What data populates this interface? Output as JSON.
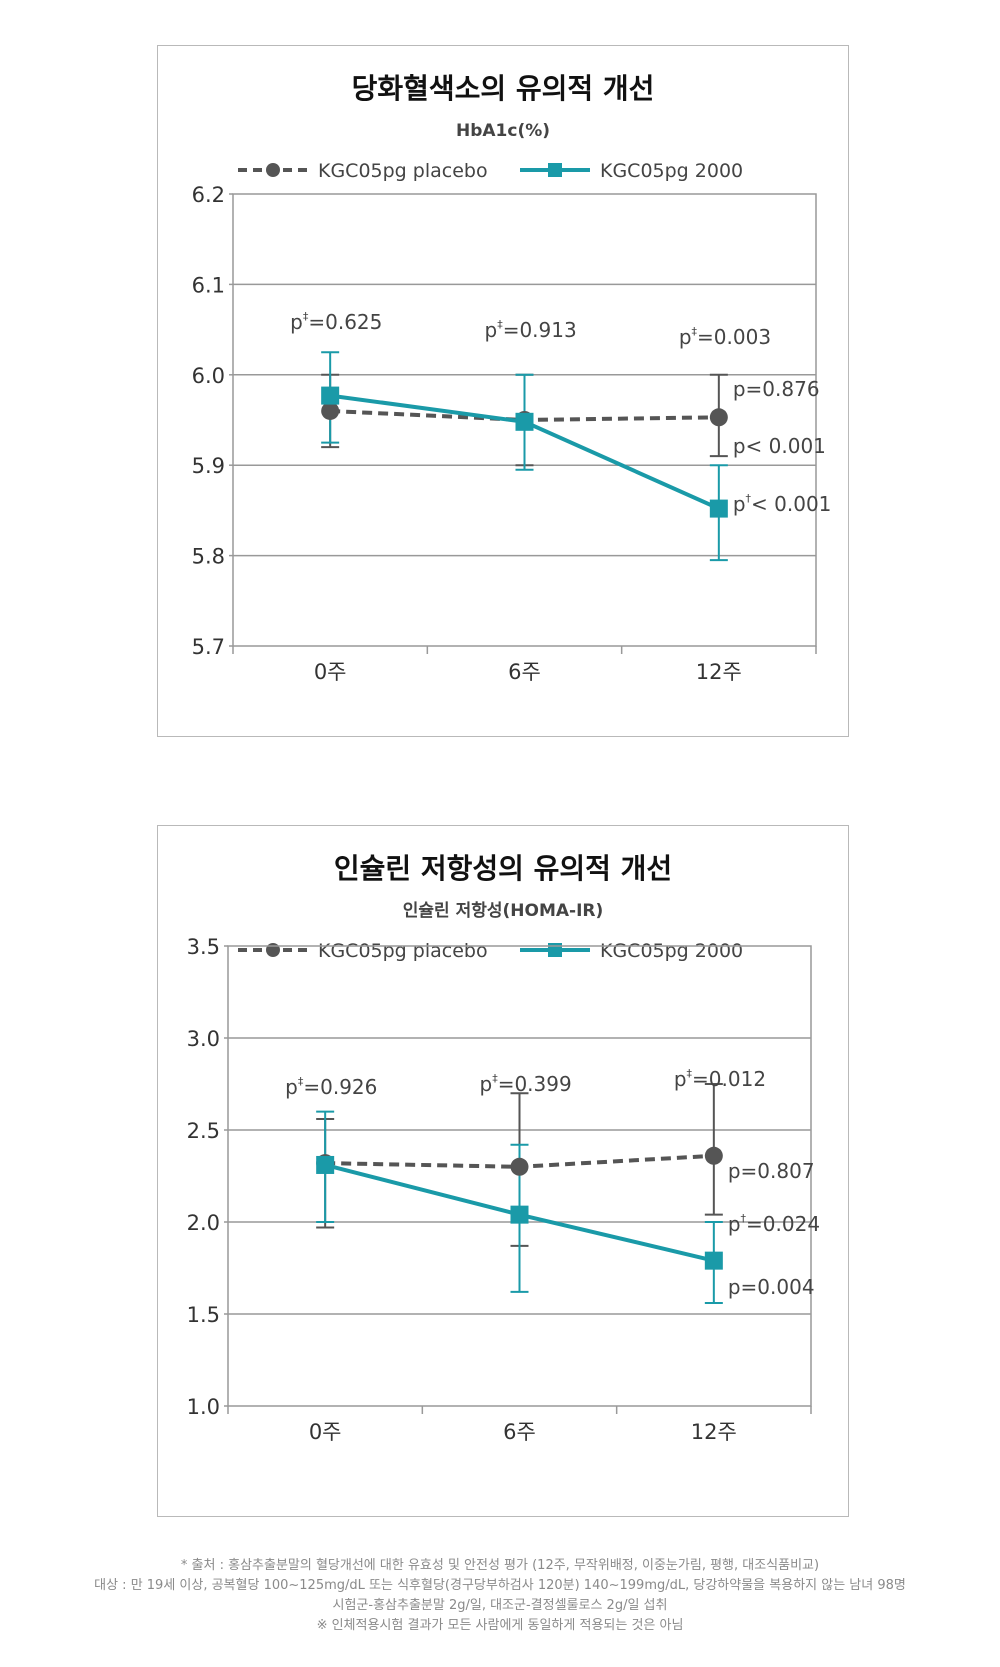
{
  "colors": {
    "placebo": "#555555",
    "treatment": "#1a9aa8",
    "grid": "#999999",
    "text": "#333333"
  },
  "chart_data": [
    {
      "type": "line",
      "title": "당화혈색소의 유의적 개선",
      "subtitle": "HbA1c(%)",
      "categories": [
        "0주",
        "6주",
        "12주"
      ],
      "ylim": [
        5.7,
        6.2
      ],
      "yticks": [
        "6.2",
        "6.1",
        "6.0",
        "5.9",
        "5.8",
        "5.7"
      ],
      "ytick_values": [
        6.2,
        6.1,
        6.0,
        5.9,
        5.8,
        5.7
      ],
      "grid": true,
      "legend": "top",
      "series": [
        {
          "name": "KGC05pg placebo",
          "style": "dashed-circle",
          "values": [
            5.96,
            5.95,
            5.953
          ],
          "err_low": [
            5.92,
            5.9,
            5.91
          ],
          "err_high": [
            6.0,
            6.0,
            6.0
          ]
        },
        {
          "name": "KGC05pg 2000",
          "style": "solid-square",
          "values": [
            5.977,
            5.948,
            5.852
          ],
          "err_low": [
            5.925,
            5.895,
            5.795
          ],
          "err_high": [
            6.025,
            6.0,
            5.9
          ]
        }
      ],
      "between_labels": [
        {
          "sup": "‡",
          "text": "=0.625"
        },
        {
          "sup": "‡",
          "text": "=0.913"
        },
        {
          "sup": "‡",
          "text": "=0.003"
        }
      ],
      "end_labels": [
        {
          "sup": "",
          "text": "=0.876"
        },
        {
          "sup": "",
          "text": "< 0.001"
        },
        {
          "sup": "†",
          "text": "< 0.001"
        }
      ]
    },
    {
      "type": "line",
      "title": "인슐린 저항성의 유의적 개선",
      "subtitle": "인슐린 저항성(HOMA-IR)",
      "categories": [
        "0주",
        "6주",
        "12주"
      ],
      "ylim": [
        1.0,
        3.5
      ],
      "yticks": [
        "3.5",
        "3.0",
        "2.5",
        "2.0",
        "1.5",
        "1.0"
      ],
      "ytick_values": [
        3.5,
        3.0,
        2.5,
        2.0,
        1.5,
        1.0
      ],
      "grid": true,
      "legend": "top",
      "series": [
        {
          "name": "KGC05pg placebo",
          "style": "dashed-circle",
          "values": [
            2.32,
            2.3,
            2.36
          ],
          "err_low": [
            1.97,
            1.87,
            2.04
          ],
          "err_high": [
            2.56,
            2.7,
            2.75
          ]
        },
        {
          "name": "KGC05pg 2000",
          "style": "solid-square",
          "values": [
            2.31,
            2.04,
            1.79
          ],
          "err_low": [
            2.0,
            1.62,
            1.56
          ],
          "err_high": [
            2.6,
            2.42,
            2.0
          ]
        }
      ],
      "between_labels": [
        {
          "sup": "‡",
          "text": "=0.926"
        },
        {
          "sup": "‡",
          "text": "=0.399"
        },
        {
          "sup": "‡",
          "text": "=0.012"
        }
      ],
      "end_labels": [
        {
          "sup": "",
          "text": "=0.807"
        },
        {
          "sup": "†",
          "text": "=0.024"
        },
        {
          "sup": "",
          "text": "=0.004"
        }
      ]
    }
  ],
  "p_letter": "p",
  "footer": {
    "line1": "* 출처 : 홍삼추출분말의 혈당개선에 대한 유효성 및 안전성 평가 (12주, 무작위배정, 이중눈가림, 평행, 대조식품비교)",
    "line2": "대상 : 만 19세 이상, 공복혈당 100~125mg/dL 또는 식후혈당(경구당부하검사 120분) 140~199mg/dL, 당강하약물을 복용하지 않는 남녀 98명",
    "line3": "시험군-홍삼추출분말 2g/일, 대조군-결정셀룰로스 2g/일 섭취",
    "line4": "※ 인체적용시험 결과가 모든 사람에게 동일하게 적용되는 것은 아님"
  }
}
